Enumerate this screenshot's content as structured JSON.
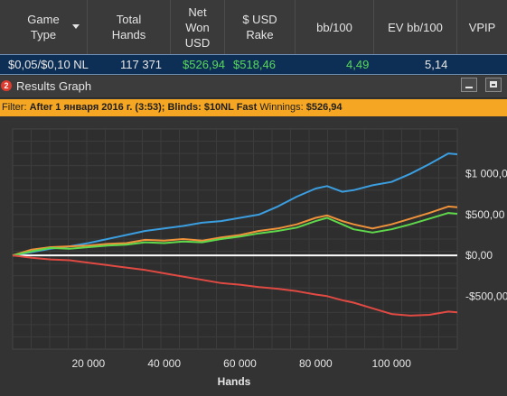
{
  "header": {
    "columns": [
      {
        "label": "Game\nType"
      },
      {
        "label": "Total\nHands"
      },
      {
        "label": "Net\nWon\nUSD"
      },
      {
        "label": "$ USD\nRake"
      },
      {
        "label": "bb/100"
      },
      {
        "label": "EV bb/100"
      },
      {
        "label": "VPIP"
      }
    ]
  },
  "row": {
    "game_type": "$0,05/$0,10 NL",
    "total_hands": "117 371",
    "net_won": "$526,94",
    "rake": "$518,46",
    "bb100": "4,49",
    "ev_bb100": "5,14"
  },
  "window": {
    "badge": "2",
    "title": "Results Graph"
  },
  "filter": {
    "prefix": "Filter:",
    "criteria": "After 1 января 2016 г. (3:53); Blinds: $10NL Fast",
    "winnings_label": "Winnings:",
    "winnings_value": "$526,94"
  },
  "colors": {
    "accent_bar": "#f5a623",
    "header_bg": "#3a3a3a",
    "selected_row": "#0e2f55",
    "positive_value": "#58d85a"
  },
  "chart_data": {
    "type": "line",
    "xlabel": "Hands",
    "ylabel": "",
    "xlim": [
      0,
      117371
    ],
    "ylim": [
      -1150,
      1550
    ],
    "x_ticks": [
      20000,
      40000,
      60000,
      80000,
      100000
    ],
    "x_tick_labels": [
      "20 000",
      "40 000",
      "60 000",
      "80 000",
      "100 000"
    ],
    "y_ticks": [
      -500,
      0,
      500,
      1000
    ],
    "y_tick_labels": [
      "-$500,00",
      "$0,00",
      "$500,00",
      "$1 000,00"
    ],
    "grid": true,
    "series": [
      {
        "color": "#3b9ee0",
        "x": [
          0,
          5000,
          10000,
          15000,
          20000,
          25000,
          30000,
          35000,
          40000,
          45000,
          50000,
          55000,
          60000,
          65000,
          70000,
          75000,
          80000,
          83000,
          87000,
          90000,
          95000,
          100000,
          105000,
          110000,
          115000,
          117371
        ],
        "y": [
          0,
          40,
          80,
          110,
          150,
          200,
          250,
          300,
          330,
          360,
          400,
          420,
          460,
          500,
          600,
          720,
          820,
          850,
          780,
          800,
          860,
          900,
          1000,
          1120,
          1250,
          1240
        ]
      },
      {
        "color": "#f0923a",
        "x": [
          0,
          5000,
          10000,
          15000,
          20000,
          25000,
          30000,
          35000,
          40000,
          45000,
          50000,
          55000,
          60000,
          65000,
          70000,
          75000,
          80000,
          83000,
          87000,
          90000,
          95000,
          100000,
          105000,
          110000,
          115000,
          117371
        ],
        "y": [
          0,
          70,
          100,
          110,
          120,
          140,
          150,
          190,
          180,
          200,
          180,
          220,
          250,
          300,
          330,
          380,
          460,
          490,
          420,
          380,
          330,
          380,
          450,
          520,
          600,
          590
        ]
      },
      {
        "color": "#5fd84b",
        "x": [
          0,
          5000,
          10000,
          15000,
          20000,
          25000,
          30000,
          35000,
          40000,
          45000,
          50000,
          55000,
          60000,
          65000,
          70000,
          75000,
          80000,
          83000,
          87000,
          90000,
          95000,
          100000,
          105000,
          110000,
          115000,
          117371
        ],
        "y": [
          0,
          50,
          90,
          80,
          100,
          120,
          130,
          160,
          150,
          170,
          160,
          200,
          230,
          270,
          300,
          340,
          420,
          460,
          380,
          320,
          280,
          320,
          380,
          450,
          520,
          510
        ]
      },
      {
        "color": "#e04a43",
        "x": [
          0,
          5000,
          10000,
          15000,
          20000,
          25000,
          30000,
          35000,
          40000,
          45000,
          50000,
          55000,
          60000,
          65000,
          70000,
          75000,
          80000,
          83000,
          87000,
          90000,
          95000,
          100000,
          105000,
          110000,
          115000,
          117371
        ],
        "y": [
          0,
          -30,
          -50,
          -60,
          -90,
          -120,
          -150,
          -180,
          -220,
          -260,
          -300,
          -340,
          -360,
          -390,
          -410,
          -440,
          -480,
          -500,
          -550,
          -580,
          -650,
          -720,
          -740,
          -730,
          -690,
          -700
        ]
      }
    ]
  }
}
